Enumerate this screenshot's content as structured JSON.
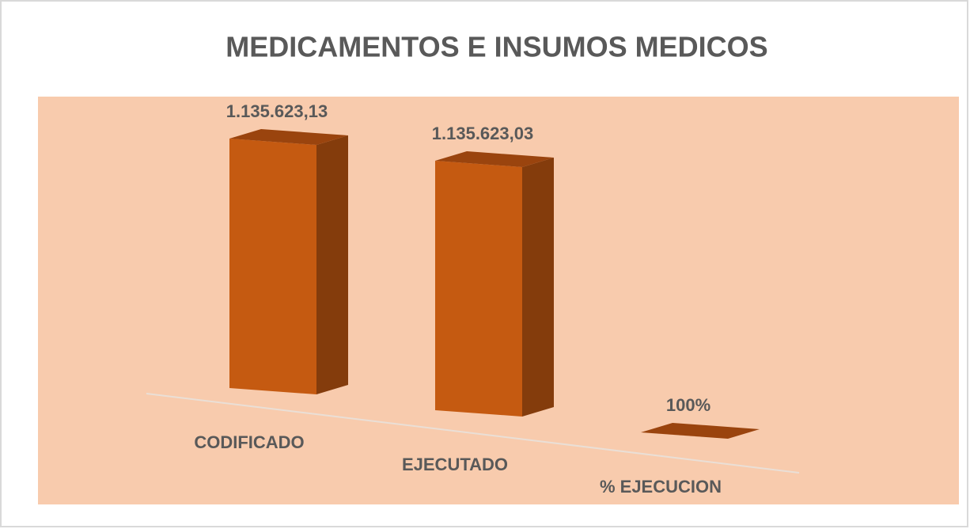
{
  "chart_data": {
    "type": "bar3d",
    "title": "MEDICAMENTOS E INSUMOS MEDICOS",
    "categories": [
      "CODIFICADO",
      "EJECUTADO",
      "% EJECUCION"
    ],
    "values": [
      1135623.13,
      1135623.03,
      100
    ],
    "value_labels": [
      "1.135.623,13",
      "1.135.623,03",
      "100%"
    ],
    "color": "#c55a11",
    "background": "#f8cbad"
  }
}
